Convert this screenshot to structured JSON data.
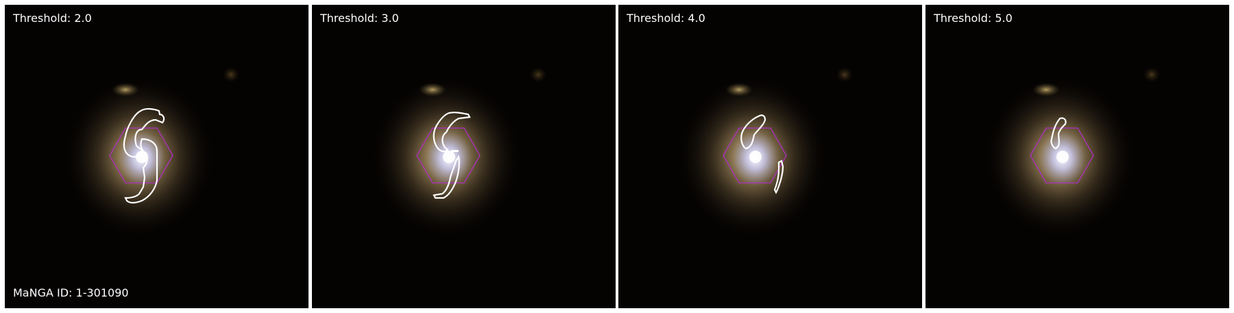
{
  "panels": [
    {
      "title": "Threshold: 2.0",
      "threshold": 2.0
    },
    {
      "title": "Threshold: 3.0",
      "threshold": 3.0
    },
    {
      "title": "Threshold: 4.0",
      "threshold": 4.0
    },
    {
      "title": "Threshold: 5.0",
      "threshold": 5.0
    }
  ],
  "galaxy": {
    "id_label": "MaNGA ID: 1-301090"
  },
  "colors": {
    "contour": "#ffffff",
    "hexagon": "#b030c0",
    "background": "#050302",
    "halo": "#b59a6a",
    "core": "#f2f2ff"
  },
  "icons": {
    "galaxy_image": "galaxy-image",
    "hexagon": "ifu-hexagon-icon",
    "contour": "arm-contour"
  }
}
